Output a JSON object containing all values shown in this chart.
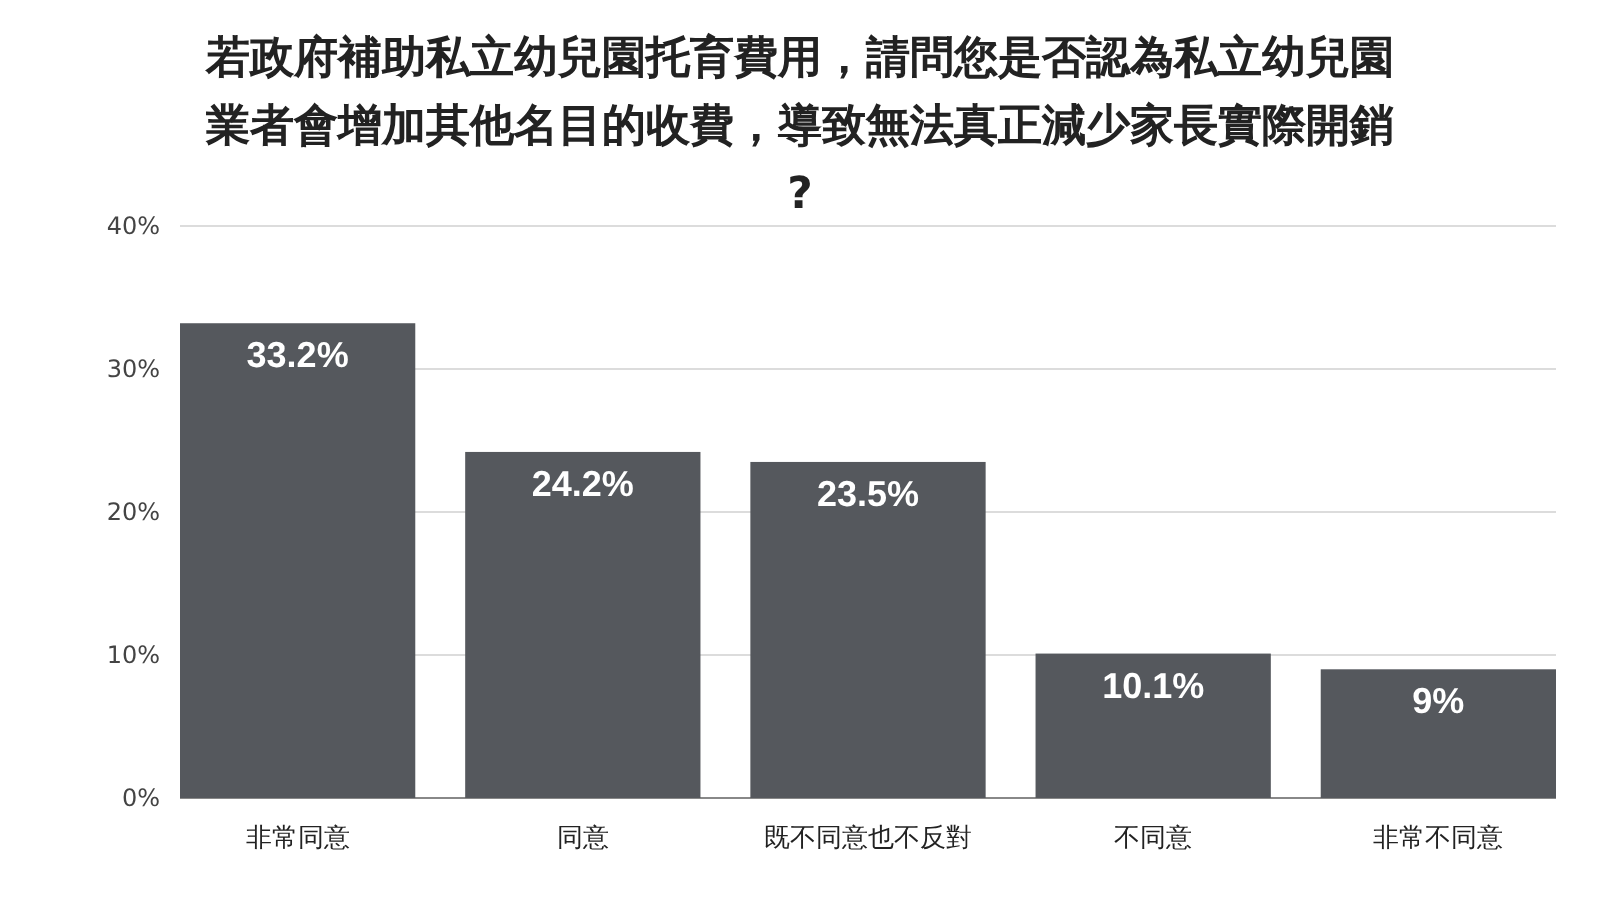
{
  "chart_data": {
    "type": "bar",
    "title": "若政府補助私立幼兒園托育費用，請問您是否認為私立幼兒園業者會增加其他名目的收費，導致無法真正減少家長實際開銷?",
    "categories": [
      "非常同意",
      "同意",
      "既不同意也不反對",
      "不同意",
      "非常不同意"
    ],
    "values": [
      33.2,
      24.2,
      23.5,
      10.1,
      9
    ],
    "value_labels": [
      "33.2%",
      "24.2%",
      "23.5%",
      "10.1%",
      "9%"
    ],
    "color": "#55585d",
    "ylim": [
      0,
      40
    ],
    "yticks": [
      {
        "value": 0,
        "label": "0%"
      },
      {
        "value": 10,
        "label": "10%"
      },
      {
        "value": 20,
        "label": "20%"
      },
      {
        "value": 30,
        "label": "30%"
      },
      {
        "value": 40,
        "label": "40%"
      }
    ],
    "grid": "y"
  }
}
